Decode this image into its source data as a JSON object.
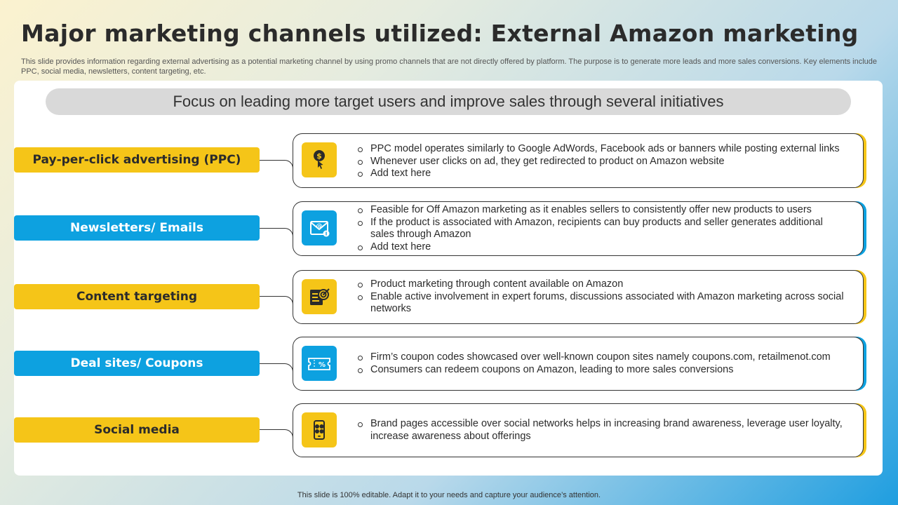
{
  "title": "Major marketing channels utilized: External Amazon marketing",
  "subtitle": "This slide provides information regarding external advertising as a potential marketing channel by using promo channels that are not directly offered by platform. The purpose is to generate more leads and more sales conversions. Key elements include PPC, social media, newsletters, content targeting, etc.",
  "banner": "Focus on leading more target users and improve sales through several initiatives",
  "channels": [
    {
      "label": "Pay-per-click advertising (PPC)",
      "icon": "dollar-click-icon",
      "color": "#f5c518",
      "bullets": [
        "PPC model operates similarly to Google AdWords, Facebook ads or banners while posting external links",
        "Whenever user clicks on ad, they get redirected to product on Amazon website",
        "Add text here"
      ]
    },
    {
      "label": "Newsletters/ Emails",
      "icon": "email-newsletter-icon",
      "color": "#0da1e0",
      "bullets": [
        "Feasible for Off Amazon marketing as it enables sellers to consistently offer new products to users",
        "If the product is associated with Amazon, recipients can buy products and seller generates additional sales through Amazon",
        "Add text here"
      ]
    },
    {
      "label": "Content targeting",
      "icon": "target-content-icon",
      "color": "#f5c518",
      "bullets": [
        "Product marketing through content available  on Amazon",
        "Enable active involvement in expert forums, discussions associated with Amazon marketing across social networks"
      ]
    },
    {
      "label": "Deal sites/ Coupons",
      "icon": "coupon-icon",
      "color": "#0da1e0",
      "bullets": [
        "Firm’s coupon codes showcased over well-known coupon sites namely coupons.com, retailmenot.com",
        "Consumers can redeem coupons on Amazon, leading to more sales conversions"
      ]
    },
    {
      "label": "Social media",
      "icon": "social-media-phone-icon",
      "color": "#f5c518",
      "bullets": [
        "Brand pages accessible over social networks helps in increasing brand awareness, leverage user loyalty, increase awareness about offerings"
      ]
    }
  ],
  "footer": "This slide is 100% editable. Adapt it to your needs and capture your audience’s attention."
}
